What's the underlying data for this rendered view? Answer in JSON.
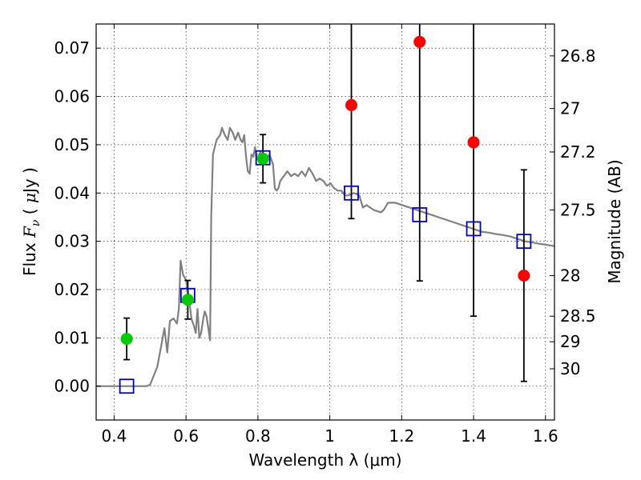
{
  "chart_data": {
    "type": "scatter",
    "xlabel": "Wavelength  λ (μm)",
    "ylabel_left": "Flux  F_ν  ( μJy )",
    "ylabel_right": "Magnitude (AB)",
    "xlim": [
      0.35,
      1.625
    ],
    "ylim": [
      -0.007,
      0.075
    ],
    "grid": true,
    "x_ticks": [
      {
        "value": 0.4,
        "label": "0.4"
      },
      {
        "value": 0.6,
        "label": "0.6"
      },
      {
        "value": 0.8,
        "label": "0.8"
      },
      {
        "value": 1.0,
        "label": "1"
      },
      {
        "value": 1.2,
        "label": "1.2"
      },
      {
        "value": 1.4,
        "label": "1.4"
      },
      {
        "value": 1.6,
        "label": "1.6"
      }
    ],
    "y_ticks": [
      {
        "value": 0.0,
        "label": "0.00"
      },
      {
        "value": 0.01,
        "label": "0.01"
      },
      {
        "value": 0.02,
        "label": "0.02"
      },
      {
        "value": 0.03,
        "label": "0.03"
      },
      {
        "value": 0.04,
        "label": "0.04"
      },
      {
        "value": 0.05,
        "label": "0.05"
      },
      {
        "value": 0.06,
        "label": "0.06"
      },
      {
        "value": 0.07,
        "label": "0.07"
      }
    ],
    "right_ticks": [
      {
        "flux": 0.0684,
        "label": "26.8"
      },
      {
        "flux": 0.0575,
        "label": "27"
      },
      {
        "flux": 0.0485,
        "label": "27.2"
      },
      {
        "flux": 0.0365,
        "label": "27.5"
      },
      {
        "flux": 0.0229,
        "label": "28"
      },
      {
        "flux": 0.0145,
        "label": "28.5"
      },
      {
        "flux": 0.0092,
        "label": "29"
      },
      {
        "flux": 0.0036,
        "label": "30"
      }
    ],
    "series": [
      {
        "kind": "model_sed",
        "color": "#808080",
        "points": [
          [
            0.35,
            0.0
          ],
          [
            0.49,
            0.0
          ],
          [
            0.5,
            0.0003
          ],
          [
            0.52,
            0.004
          ],
          [
            0.53,
            0.008
          ],
          [
            0.54,
            0.012
          ],
          [
            0.548,
            0.007
          ],
          [
            0.555,
            0.0135
          ],
          [
            0.565,
            0.014
          ],
          [
            0.575,
            0.013
          ],
          [
            0.58,
            0.016
          ],
          [
            0.585,
            0.026
          ],
          [
            0.592,
            0.023
          ],
          [
            0.6,
            0.022
          ],
          [
            0.607,
            0.019
          ],
          [
            0.615,
            0.014
          ],
          [
            0.622,
            0.0125
          ],
          [
            0.627,
            0.011
          ],
          [
            0.632,
            0.016
          ],
          [
            0.637,
            0.01
          ],
          [
            0.642,
            0.011
          ],
          [
            0.648,
            0.014
          ],
          [
            0.652,
            0.0155
          ],
          [
            0.657,
            0.0145
          ],
          [
            0.662,
            0.012
          ],
          [
            0.667,
            0.0095
          ],
          [
            0.67,
            0.035
          ],
          [
            0.675,
            0.048
          ],
          [
            0.685,
            0.051
          ],
          [
            0.695,
            0.052
          ],
          [
            0.7,
            0.0535
          ],
          [
            0.708,
            0.052
          ],
          [
            0.716,
            0.051
          ],
          [
            0.722,
            0.0535
          ],
          [
            0.73,
            0.0525
          ],
          [
            0.737,
            0.051
          ],
          [
            0.745,
            0.0525
          ],
          [
            0.752,
            0.051
          ],
          [
            0.757,
            0.0505
          ],
          [
            0.762,
            0.052
          ],
          [
            0.767,
            0.0475
          ],
          [
            0.772,
            0.0445
          ],
          [
            0.777,
            0.044
          ],
          [
            0.782,
            0.048
          ],
          [
            0.787,
            0.0475
          ],
          [
            0.792,
            0.0495
          ],
          [
            0.797,
            0.047
          ],
          [
            0.802,
            0.0475
          ],
          [
            0.807,
            0.0485
          ],
          [
            0.812,
            0.0475
          ],
          [
            0.822,
            0.0465
          ],
          [
            0.832,
            0.048
          ],
          [
            0.842,
            0.046
          ],
          [
            0.847,
            0.041
          ],
          [
            0.852,
            0.0405
          ],
          [
            0.857,
            0.041
          ],
          [
            0.862,
            0.0425
          ],
          [
            0.872,
            0.0435
          ],
          [
            0.882,
            0.0445
          ],
          [
            0.892,
            0.0435
          ],
          [
            0.902,
            0.044
          ],
          [
            0.912,
            0.0435
          ],
          [
            0.922,
            0.0445
          ],
          [
            0.932,
            0.0435
          ],
          [
            0.942,
            0.0452
          ],
          [
            0.952,
            0.044
          ],
          [
            0.962,
            0.0425
          ],
          [
            0.972,
            0.043
          ],
          [
            0.982,
            0.0425
          ],
          [
            0.992,
            0.0415
          ],
          [
            1.002,
            0.042
          ],
          [
            1.012,
            0.041
          ],
          [
            1.022,
            0.0405
          ],
          [
            1.032,
            0.0405
          ],
          [
            1.042,
            0.0395
          ],
          [
            1.052,
            0.0395
          ],
          [
            1.067,
            0.04
          ],
          [
            1.082,
            0.0395
          ],
          [
            1.092,
            0.037
          ],
          [
            1.102,
            0.0375
          ],
          [
            1.122,
            0.0365
          ],
          [
            1.142,
            0.036
          ],
          [
            1.15,
            0.0365
          ],
          [
            1.162,
            0.038
          ],
          [
            1.182,
            0.038
          ],
          [
            1.202,
            0.0375
          ],
          [
            1.222,
            0.037
          ],
          [
            1.242,
            0.0365
          ],
          [
            1.262,
            0.036
          ],
          [
            1.282,
            0.0355
          ],
          [
            1.302,
            0.035
          ],
          [
            1.322,
            0.0345
          ],
          [
            1.342,
            0.034
          ],
          [
            1.362,
            0.0335
          ],
          [
            1.382,
            0.033
          ],
          [
            1.402,
            0.0325
          ],
          [
            1.422,
            0.032
          ],
          [
            1.442,
            0.0318
          ],
          [
            1.462,
            0.0315
          ],
          [
            1.482,
            0.0313
          ],
          [
            1.502,
            0.031
          ],
          [
            1.522,
            0.0305
          ],
          [
            1.542,
            0.03
          ],
          [
            1.562,
            0.0298
          ],
          [
            1.582,
            0.0295
          ],
          [
            1.602,
            0.0293
          ],
          [
            1.625,
            0.029
          ]
        ]
      },
      {
        "kind": "model_points",
        "marker": "open-square",
        "color": "#0000cc",
        "points": [
          {
            "x": 0.435,
            "y": 0.0
          },
          {
            "x": 0.605,
            "y": 0.0188
          },
          {
            "x": 0.814,
            "y": 0.0473
          },
          {
            "x": 1.06,
            "y": 0.04
          },
          {
            "x": 1.25,
            "y": 0.0355
          },
          {
            "x": 1.4,
            "y": 0.0326
          },
          {
            "x": 1.54,
            "y": 0.03
          }
        ]
      },
      {
        "kind": "detections",
        "marker": "filled-circle",
        "color": "#00cc00",
        "points": [
          {
            "x": 0.435,
            "y": 0.0098,
            "err": 0.0043
          },
          {
            "x": 0.605,
            "y": 0.0179,
            "err": 0.004
          },
          {
            "x": 0.814,
            "y": 0.0471,
            "err": 0.005
          }
        ]
      },
      {
        "kind": "upper_limits",
        "marker": "filled-circle",
        "color": "#ff0000",
        "points": [
          {
            "x": 1.06,
            "y": 0.0582,
            "err": 0.0235
          },
          {
            "x": 1.25,
            "y": 0.0713,
            "err": 0.0495
          },
          {
            "x": 1.4,
            "y": 0.0505,
            "err": 0.036
          },
          {
            "x": 1.54,
            "y": 0.0229,
            "err": 0.0219
          }
        ]
      }
    ]
  }
}
